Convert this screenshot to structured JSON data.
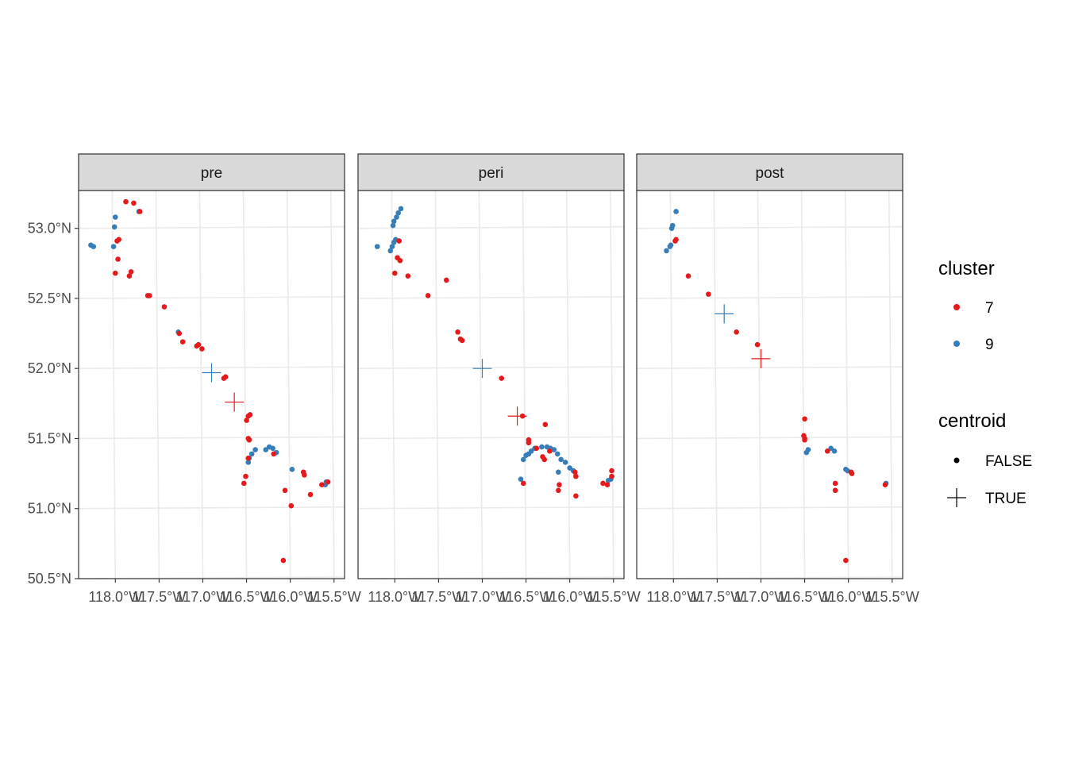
{
  "chart_data": {
    "type": "scatter",
    "facets": [
      "pre",
      "peri",
      "post"
    ],
    "x_ticks": [
      {
        "value": -118.0,
        "label": "118.0°W"
      },
      {
        "value": -117.5,
        "label": "117.5°W"
      },
      {
        "value": -117.0,
        "label": "117.0°W"
      },
      {
        "value": -116.5,
        "label": "116.5°W"
      },
      {
        "value": -116.0,
        "label": "116.0°W"
      },
      {
        "value": -115.5,
        "label": "115.5°W"
      }
    ],
    "y_ticks": [
      {
        "value": 53.0,
        "label": "53.0°N"
      },
      {
        "value": 52.5,
        "label": "52.5°N"
      },
      {
        "value": 52.0,
        "label": "52.0°N"
      },
      {
        "value": 51.5,
        "label": "51.5°N"
      },
      {
        "value": 51.0,
        "label": "51.0°N"
      },
      {
        "value": 50.5,
        "label": "50.5°N"
      }
    ],
    "xlim": [
      -118.42,
      -115.38
    ],
    "ylim": [
      50.5,
      53.27
    ],
    "grid": true,
    "legend_placement": "right",
    "legend": {
      "cluster": {
        "title": "cluster",
        "entries": [
          {
            "label": "7",
            "color": "#E41A1C"
          },
          {
            "label": "9",
            "color": "#377EB8"
          }
        ]
      },
      "centroid": {
        "title": "centroid",
        "entries": [
          {
            "label": "FALSE",
            "shape": "point"
          },
          {
            "label": "TRUE",
            "shape": "cross"
          }
        ]
      }
    },
    "colors": {
      "7": "#E41A1C",
      "9": "#377EB8"
    },
    "centroids": [
      {
        "facet": "pre",
        "cluster": "9",
        "lon": -116.9,
        "lat": 51.97
      },
      {
        "facet": "pre",
        "cluster": "7",
        "lon": -116.64,
        "lat": 51.76
      },
      {
        "facet": "peri",
        "cluster": "9",
        "lon": -117.0,
        "lat": 52.0
      },
      {
        "facet": "peri",
        "cluster": "7",
        "lon": -116.6,
        "lat": 51.66
      },
      {
        "facet": "post",
        "cluster": "9",
        "lon": -117.42,
        "lat": 52.39
      },
      {
        "facet": "post",
        "cluster": "7",
        "lon": -117.0,
        "lat": 52.07
      }
    ],
    "points": {
      "pre": [
        {
          "cluster": "9",
          "coords": [
            [
              -118.28,
              52.88
            ],
            [
              -118.25,
              52.87
            ],
            [
              -118.02,
              52.87
            ],
            [
              -118.01,
              53.01
            ],
            [
              -118.0,
              53.08
            ],
            [
              -117.73,
              53.12
            ],
            [
              -117.28,
              52.26
            ],
            [
              -116.48,
              51.33
            ],
            [
              -116.47,
              51.36
            ],
            [
              -116.44,
              51.39
            ],
            [
              -116.4,
              51.42
            ],
            [
              -116.28,
              51.42
            ],
            [
              -116.24,
              51.44
            ],
            [
              -116.2,
              51.43
            ],
            [
              -116.16,
              51.4
            ],
            [
              -115.98,
              51.28
            ],
            [
              -115.59,
              51.19
            ],
            [
              -115.6,
              51.17
            ]
          ]
        },
        {
          "cluster": "7",
          "coords": [
            [
              -117.88,
              53.19
            ],
            [
              -117.79,
              53.18
            ],
            [
              -117.72,
              53.12
            ],
            [
              -117.98,
              52.91
            ],
            [
              -117.96,
              52.92
            ],
            [
              -117.97,
              52.78
            ],
            [
              -118.0,
              52.68
            ],
            [
              -117.84,
              52.66
            ],
            [
              -117.82,
              52.69
            ],
            [
              -117.63,
              52.52
            ],
            [
              -117.61,
              52.52
            ],
            [
              -117.44,
              52.44
            ],
            [
              -117.27,
              52.25
            ],
            [
              -117.23,
              52.19
            ],
            [
              -117.07,
              52.16
            ],
            [
              -117.05,
              52.17
            ],
            [
              -117.01,
              52.14
            ],
            [
              -116.74,
              51.94
            ],
            [
              -116.76,
              51.93
            ],
            [
              -116.48,
              51.66
            ],
            [
              -116.46,
              51.67
            ],
            [
              -116.5,
              51.63
            ],
            [
              -116.48,
              51.5
            ],
            [
              -116.47,
              51.49
            ],
            [
              -116.48,
              51.36
            ],
            [
              -116.51,
              51.23
            ],
            [
              -116.53,
              51.18
            ],
            [
              -116.19,
              51.39
            ],
            [
              -116.06,
              51.13
            ],
            [
              -115.99,
              51.02
            ],
            [
              -115.85,
              51.26
            ],
            [
              -115.84,
              51.24
            ],
            [
              -115.77,
              51.1
            ],
            [
              -115.64,
              51.17
            ],
            [
              -115.57,
              51.19
            ],
            [
              -116.08,
              50.63
            ]
          ]
        }
      ],
      "peri": [
        {
          "cluster": "9",
          "coords": [
            [
              -118.2,
              52.87
            ],
            [
              -118.05,
              52.84
            ],
            [
              -118.03,
              52.87
            ],
            [
              -118.01,
              52.9
            ],
            [
              -117.99,
              52.92
            ],
            [
              -118.02,
              53.02
            ],
            [
              -118.01,
              53.05
            ],
            [
              -117.98,
              53.08
            ],
            [
              -117.96,
              53.11
            ],
            [
              -117.93,
              53.14
            ],
            [
              -116.56,
              51.21
            ],
            [
              -116.53,
              51.35
            ],
            [
              -116.5,
              51.38
            ],
            [
              -116.47,
              51.39
            ],
            [
              -116.44,
              51.41
            ],
            [
              -116.4,
              51.43
            ],
            [
              -116.32,
              51.44
            ],
            [
              -116.26,
              51.44
            ],
            [
              -116.22,
              51.43
            ],
            [
              -116.18,
              51.42
            ],
            [
              -116.14,
              51.39
            ],
            [
              -116.1,
              51.35
            ],
            [
              -116.05,
              51.33
            ],
            [
              -116.0,
              51.29
            ],
            [
              -115.96,
              51.27
            ],
            [
              -116.13,
              51.26
            ],
            [
              -115.56,
              51.2
            ],
            [
              -115.53,
              51.21
            ]
          ]
        },
        {
          "cluster": "7",
          "coords": [
            [
              -117.95,
              52.91
            ],
            [
              -117.97,
              52.79
            ],
            [
              -117.94,
              52.77
            ],
            [
              -118.0,
              52.68
            ],
            [
              -117.85,
              52.66
            ],
            [
              -117.62,
              52.52
            ],
            [
              -117.41,
              52.63
            ],
            [
              -117.28,
              52.26
            ],
            [
              -117.23,
              52.2
            ],
            [
              -117.25,
              52.21
            ],
            [
              -116.78,
              51.93
            ],
            [
              -116.54,
              51.66
            ],
            [
              -116.47,
              51.49
            ],
            [
              -116.47,
              51.47
            ],
            [
              -116.38,
              51.43
            ],
            [
              -116.31,
              51.37
            ],
            [
              -116.29,
              51.35
            ],
            [
              -116.23,
              51.41
            ],
            [
              -116.28,
              51.6
            ],
            [
              -116.12,
              51.17
            ],
            [
              -116.13,
              51.13
            ],
            [
              -115.94,
              51.26
            ],
            [
              -115.93,
              51.23
            ],
            [
              -115.93,
              51.09
            ],
            [
              -115.62,
              51.18
            ],
            [
              -115.57,
              51.17
            ],
            [
              -115.52,
              51.27
            ],
            [
              -115.52,
              51.23
            ],
            [
              -116.53,
              51.18
            ]
          ]
        }
      ],
      "post": [
        {
          "cluster": "9",
          "coords": [
            [
              -118.08,
              52.84
            ],
            [
              -118.04,
              52.87
            ],
            [
              -118.03,
              52.88
            ],
            [
              -118.02,
              53.0
            ],
            [
              -118.01,
              53.02
            ],
            [
              -117.97,
              53.12
            ],
            [
              -116.48,
              51.4
            ],
            [
              -116.46,
              51.42
            ],
            [
              -116.2,
              51.43
            ],
            [
              -116.16,
              51.41
            ],
            [
              -116.03,
              51.28
            ],
            [
              -116.01,
              51.27
            ],
            [
              -115.57,
              51.18
            ]
          ]
        },
        {
          "cluster": "7",
          "coords": [
            [
              -117.98,
              52.91
            ],
            [
              -117.97,
              52.92
            ],
            [
              -117.83,
              52.66
            ],
            [
              -117.6,
              52.53
            ],
            [
              -117.28,
              52.26
            ],
            [
              -117.04,
              52.17
            ],
            [
              -116.5,
              51.64
            ],
            [
              -116.51,
              51.52
            ],
            [
              -116.5,
              51.5
            ],
            [
              -116.5,
              51.49
            ],
            [
              -116.24,
              51.41
            ],
            [
              -116.15,
              51.18
            ],
            [
              -116.15,
              51.13
            ],
            [
              -115.97,
              51.26
            ],
            [
              -115.96,
              51.25
            ],
            [
              -115.58,
              51.17
            ],
            [
              -116.03,
              50.63
            ]
          ]
        }
      ]
    }
  }
}
